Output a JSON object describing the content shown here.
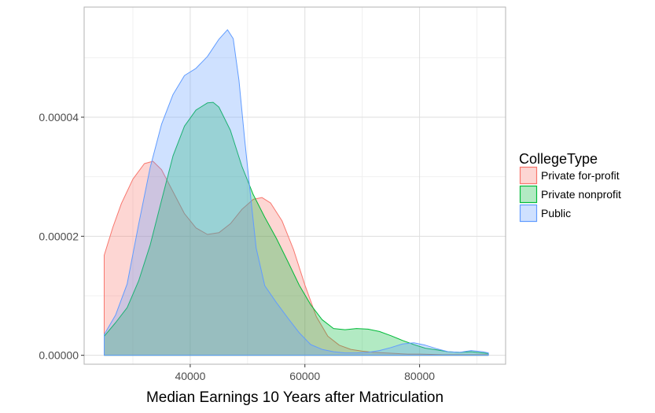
{
  "chart_data": {
    "type": "area",
    "subtype": "density",
    "title": "",
    "xlabel": "Median Earnings 10 Years after Matriculation",
    "ylabel": "",
    "xlim": [
      21500,
      95000
    ],
    "ylim": [
      -1.5e-06,
      5.85e-05
    ],
    "x_ticks": [
      40000,
      60000,
      80000
    ],
    "x_tick_labels": [
      "40000",
      "60000",
      "80000"
    ],
    "y_ticks": [
      0,
      2e-05,
      4e-05
    ],
    "y_tick_labels": [
      "0.00000",
      "0.00002",
      "0.00004"
    ],
    "grid": true,
    "legend": {
      "title": "CollegeType",
      "position": "right"
    },
    "series": [
      {
        "name": "Private for-profit",
        "fill": "#F8766D",
        "line": "#F8766D",
        "x": [
          25000,
          26500,
          28000,
          30000,
          32000,
          33500,
          35000,
          37000,
          39000,
          41000,
          43000,
          45000,
          47000,
          49000,
          51000,
          52500,
          54000,
          56000,
          58000,
          60000,
          62000,
          64000,
          66000,
          68000,
          70000,
          72000,
          74000,
          76000,
          78000,
          80000,
          84000,
          88000,
          92000
        ],
        "y": [
          1.68e-05,
          2.15e-05,
          2.55e-05,
          2.96e-05,
          3.22e-05,
          3.26e-05,
          3.12e-05,
          2.75e-05,
          2.38e-05,
          2.14e-05,
          2.03e-05,
          2.06e-05,
          2.21e-05,
          2.45e-05,
          2.62e-05,
          2.65e-05,
          2.56e-05,
          2.26e-05,
          1.78e-05,
          1.18e-05,
          6.5e-06,
          3.2e-06,
          1.7e-06,
          1e-06,
          7e-07,
          5e-07,
          4e-07,
          3e-07,
          2e-07,
          2e-07,
          1e-07,
          1e-07,
          1e-07
        ]
      },
      {
        "name": "Private nonprofit",
        "fill": "#00BA38",
        "line": "#00BA38",
        "x": [
          25000,
          27000,
          29000,
          31000,
          33000,
          35000,
          37000,
          39000,
          41000,
          43000,
          44000,
          45000,
          47000,
          49000,
          51000,
          53000,
          55000,
          57000,
          59000,
          61000,
          63000,
          65000,
          67000,
          69000,
          71000,
          73000,
          75000,
          77000,
          79000,
          81000,
          83000,
          85000,
          87000,
          89000,
          91000,
          92000
        ],
        "y": [
          3.2e-06,
          5.5e-06,
          8e-06,
          1.25e-05,
          1.85e-05,
          2.6e-05,
          3.35e-05,
          3.85e-05,
          4.12e-05,
          4.24e-05,
          4.25e-05,
          4.17e-05,
          3.78e-05,
          3.18e-05,
          2.7e-05,
          2.32e-05,
          1.97e-05,
          1.58e-05,
          1.18e-05,
          8.5e-06,
          6e-06,
          4.5e-06,
          4.3e-06,
          4.5e-06,
          4.4e-06,
          4e-06,
          3.3e-06,
          2.5e-06,
          1.8e-06,
          1.2e-06,
          9e-07,
          6e-07,
          5e-07,
          6e-07,
          4e-07,
          3e-07
        ]
      },
      {
        "name": "Public",
        "fill": "#619CFF",
        "line": "#619CFF",
        "x": [
          25000,
          27000,
          29000,
          31000,
          33000,
          35000,
          37000,
          39000,
          41000,
          43000,
          45000,
          46500,
          47500,
          48500,
          49500,
          50500,
          51500,
          53000,
          55000,
          57000,
          59000,
          61000,
          63000,
          65000,
          67000,
          69000,
          71000,
          73000,
          75000,
          77000,
          79000,
          81000,
          83000,
          85000,
          87000,
          89000,
          91000,
          92000
        ],
        "y": [
          3.5e-06,
          6.8e-06,
          1.2e-05,
          2.2e-05,
          3.15e-05,
          3.88e-05,
          4.38e-05,
          4.7e-05,
          4.82e-05,
          5.02e-05,
          5.31e-05,
          5.47e-05,
          5.32e-05,
          4.62e-05,
          3.62e-05,
          2.7e-05,
          1.8e-05,
          1.17e-05,
          8.9e-06,
          6.3e-06,
          3.8e-06,
          1.8e-06,
          1e-06,
          6e-07,
          4e-07,
          4e-07,
          5e-07,
          8e-07,
          1.3e-06,
          1.9e-06,
          2.1e-06,
          1.7e-06,
          1.1e-06,
          6e-07,
          5e-07,
          8e-07,
          6e-07,
          4e-07
        ]
      }
    ]
  },
  "colors": {
    "panel_background": "#ffffff",
    "panel_border": "#b3b3b3",
    "grid_major": "#dedede",
    "grid_minor": "#f0f0f0"
  }
}
